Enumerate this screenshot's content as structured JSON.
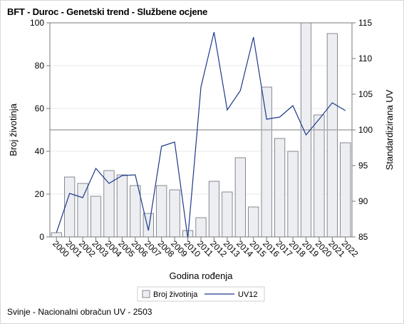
{
  "title": "BFT - Duroc - Genetski trend - Službene ocjene",
  "footnote": "Svinje - Nacionalni obračun UV - 2503",
  "colors": {
    "bar_fill": "#eceef2",
    "bar_stroke": "#6d6f7a",
    "line": "#1d3a8a",
    "refline": "#a9a9a9",
    "grid": "#e8e8e8",
    "axis": "#7a7a7a"
  },
  "chart_data": {
    "type": "bar+line",
    "xlabel": "Godina rođenja",
    "ylabel_left": "Broj životinja",
    "ylabel_right": "Standardizirana UV",
    "ylim_left": [
      0,
      100
    ],
    "yticks_left": [
      0,
      20,
      40,
      60,
      80,
      100
    ],
    "ylim_right": [
      85,
      115
    ],
    "yticks_right": [
      85,
      90,
      95,
      100,
      105,
      110,
      115
    ],
    "reference_line_right": 100,
    "grid": true,
    "legend_position": "bottom",
    "categories": [
      "2000",
      "2001",
      "2002",
      "2003",
      "2004",
      "2005",
      "2006",
      "2007",
      "2008",
      "2009",
      "2010",
      "2011",
      "2012",
      "2013",
      "2014",
      "2015",
      "2016",
      "2017",
      "2018",
      "2019",
      "2020",
      "2021",
      "2022"
    ],
    "series": [
      {
        "name": "Broj životinja",
        "type": "bar",
        "axis": "left",
        "values": [
          2,
          28,
          25,
          19,
          31,
          29,
          24,
          11,
          24,
          22,
          3,
          9,
          26,
          21,
          37,
          14,
          70,
          46,
          40,
          100,
          57,
          95,
          44
        ]
      },
      {
        "name": "UV12",
        "type": "line",
        "axis": "right",
        "values": [
          85.6,
          91.1,
          90.5,
          94.6,
          92.5,
          93.6,
          93.7,
          85.9,
          97.7,
          98.3,
          84.8,
          106.0,
          113.7,
          102.8,
          105.5,
          113.0,
          101.5,
          101.8,
          103.4,
          99.3,
          101.5,
          103.8,
          102.7
        ]
      }
    ]
  }
}
